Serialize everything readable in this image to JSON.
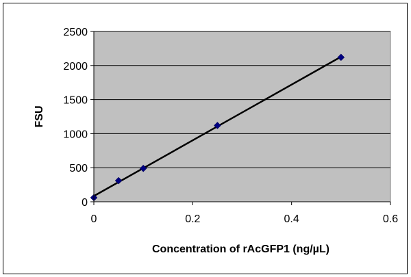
{
  "chart_data": {
    "type": "scatter",
    "title": "",
    "xlabel": "Concentration of rAcGFP1 (ng/µL)",
    "ylabel": "FSU",
    "xlim": [
      0,
      0.6
    ],
    "ylim": [
      0,
      2500
    ],
    "x_ticks": [
      0,
      0.2,
      0.4,
      0.6
    ],
    "y_ticks": [
      0,
      500,
      1000,
      1500,
      2000,
      2500
    ],
    "grid": "horizontal",
    "legend": "none",
    "plot_background": "#c0c0c0",
    "marker_color": "#000080",
    "trendline": "linear",
    "series": [
      {
        "x": [
          0,
          0.05,
          0.1,
          0.25,
          0.5
        ],
        "y": [
          60,
          310,
          490,
          1120,
          2120
        ]
      }
    ]
  }
}
